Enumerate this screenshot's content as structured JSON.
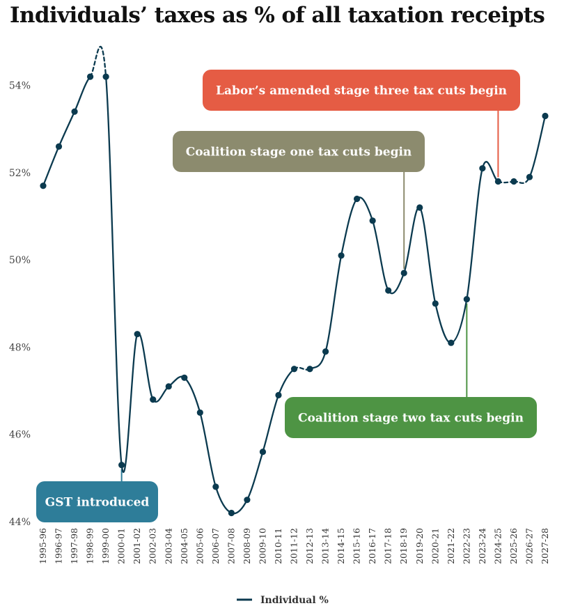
{
  "chart_data": {
    "type": "line",
    "title": "Individuals’ taxes as % of all taxation receipts",
    "xlabel": "",
    "ylabel": "",
    "ylim": [
      44,
      55
    ],
    "y_ticks": [
      44,
      46,
      48,
      50,
      52,
      54
    ],
    "y_tick_suffix": "%",
    "grid": false,
    "legend_position": "bottom-center",
    "categories": [
      "1995-96",
      "1996-97",
      "1997-98",
      "1998-99",
      "1999-00",
      "2000-01",
      "2001-02",
      "2002-03",
      "2003-04",
      "2004-05",
      "2005-06",
      "2006-07",
      "2007-08",
      "2008-09",
      "2009-10",
      "2010-11",
      "2011-12",
      "2012-13",
      "2013-14",
      "2014-15",
      "2015-16",
      "2016-17",
      "2017-18",
      "2018-19",
      "2019-20",
      "2020-21",
      "2021-22",
      "2022-23",
      "2023-24",
      "2024-25",
      "2025-26",
      "2026-27",
      "2027-28"
    ],
    "series": [
      {
        "name": "Individual %",
        "color": "#0b3a4f",
        "values": [
          51.7,
          52.6,
          53.4,
          54.2,
          54.2,
          45.3,
          48.3,
          46.8,
          47.1,
          47.3,
          46.5,
          44.8,
          44.2,
          44.5,
          45.6,
          46.9,
          47.5,
          47.5,
          47.9,
          50.1,
          51.4,
          50.9,
          49.3,
          49.7,
          51.2,
          49.0,
          48.1,
          49.1,
          52.1,
          51.8,
          51.8,
          51.9,
          53.3
        ],
        "dashed_segments": [
          [
            3,
            4
          ],
          [
            16,
            17
          ],
          [
            29,
            31
          ]
        ]
      }
    ],
    "annotations": [
      {
        "text": "GST introduced",
        "category": "2000-01",
        "color": "#2e7d99",
        "line_color": "#2e7d99"
      },
      {
        "text": "Coalition stage one tax cuts begin",
        "category": "2018-19",
        "color": "#8c8b6e",
        "line_color": "#8c8b6e"
      },
      {
        "text": "Coalition stage two tax cuts begin",
        "category": "2022-23",
        "color": "#4e9444",
        "line_color": "#4e9444"
      },
      {
        "text": "Labor’s amended stage three tax cuts begin",
        "category": "2024-25",
        "color": "#e55c44",
        "line_color": "#e55c44"
      }
    ]
  }
}
